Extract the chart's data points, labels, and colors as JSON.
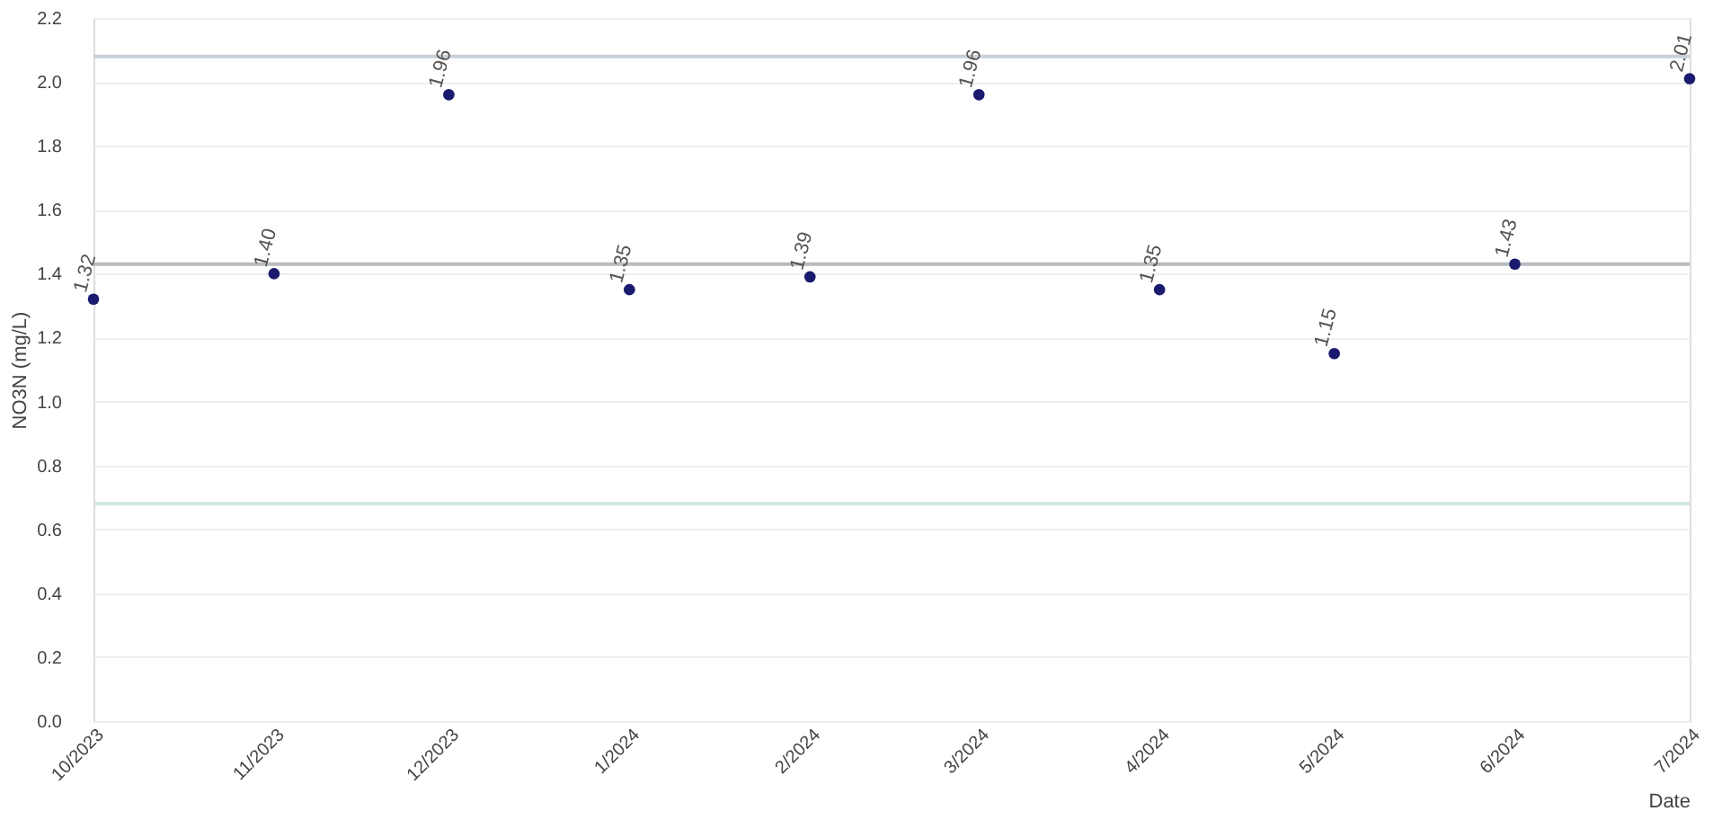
{
  "chart_data": {
    "type": "scatter",
    "xlabel": "Date",
    "ylabel": "NO3N (mg/L)",
    "x": [
      "2023-10-01",
      "2023-11-01",
      "2023-12-01",
      "2024-01-01",
      "2024-02-01",
      "2024-03-01",
      "2024-04-01",
      "2024-05-01",
      "2024-06-01",
      "2024-07-01"
    ],
    "series": [
      {
        "color": "#1a1a6e",
        "values": [
          1.32,
          1.4,
          1.96,
          1.35,
          1.39,
          1.96,
          1.35,
          1.15,
          1.43,
          2.01
        ],
        "value_labels": [
          "1.32",
          "1.40",
          "1.96",
          "1.35",
          "1.39",
          "1.96",
          "1.35",
          "1.15",
          "1.43",
          "2.01"
        ]
      }
    ],
    "marker": "circle",
    "xlim": [
      "2023-10-01",
      "2024-07-01"
    ],
    "xticks": [
      {
        "value": "2023-10-01",
        "label": "10/2023"
      },
      {
        "value": "2023-11-01",
        "label": "11/2023"
      },
      {
        "value": "2023-12-01",
        "label": "12/2023"
      },
      {
        "value": "2024-01-01",
        "label": "1/2024"
      },
      {
        "value": "2024-02-01",
        "label": "2/2024"
      },
      {
        "value": "2024-03-01",
        "label": "3/2024"
      },
      {
        "value": "2024-04-01",
        "label": "4/2024"
      },
      {
        "value": "2024-05-01",
        "label": "5/2024"
      },
      {
        "value": "2024-06-01",
        "label": "6/2024"
      },
      {
        "value": "2024-07-01",
        "label": "7/2024"
      }
    ],
    "ylim": [
      0,
      2.2
    ],
    "yticks": [
      {
        "value": 0,
        "label": "0.0"
      },
      {
        "value": 0.2,
        "label": "0.2"
      },
      {
        "value": 0.4,
        "label": "0.4"
      },
      {
        "value": 0.6,
        "label": "0.6"
      },
      {
        "value": 0.8,
        "label": "0.8"
      },
      {
        "value": 1.0,
        "label": "1.0"
      },
      {
        "value": 1.2,
        "label": "1.2"
      },
      {
        "value": 1.4,
        "label": "1.4"
      },
      {
        "value": 1.6,
        "label": "1.6"
      },
      {
        "value": 1.8,
        "label": "1.8"
      },
      {
        "value": 2.0,
        "label": "2.0"
      },
      {
        "value": 2.2,
        "label": "2.2"
      }
    ],
    "ref_lines": [
      {
        "axis": "y",
        "value": 2.08,
        "color": "#c8d0d8"
      },
      {
        "axis": "y",
        "value": 1.43,
        "color": "#b8bcc0"
      },
      {
        "axis": "y",
        "value": 0.68,
        "color": "#cfe6e0"
      }
    ],
    "grid": "y"
  }
}
